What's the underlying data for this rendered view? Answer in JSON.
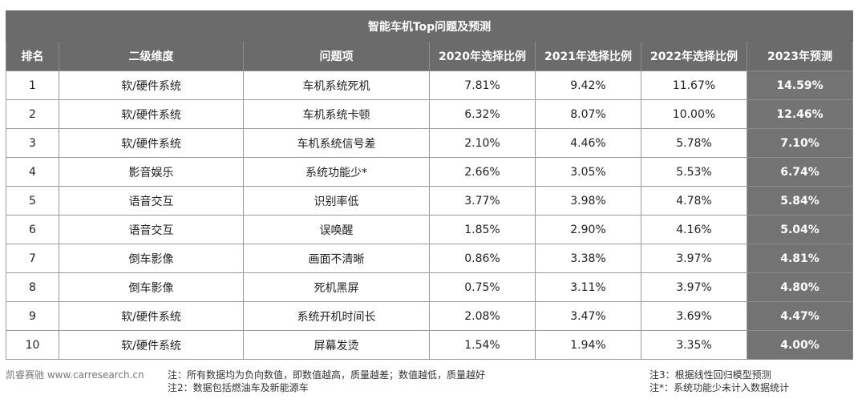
{
  "table": {
    "title": "智能车机Top问题及预测",
    "headers": [
      "排名",
      "二级维度",
      "问题项",
      "2020年选择比例",
      "2021年选择比例",
      "2022年选择比例",
      "2023年预测"
    ],
    "rows": [
      {
        "rank": "1",
        "dimension": "软/硬件系统",
        "issue": "车机系统死机",
        "y2020": "7.81%",
        "y2021": "9.42%",
        "y2022": "11.67%",
        "y2023": "14.59%"
      },
      {
        "rank": "2",
        "dimension": "软/硬件系统",
        "issue": "车机系统卡顿",
        "y2020": "6.32%",
        "y2021": "8.07%",
        "y2022": "10.00%",
        "y2023": "12.46%"
      },
      {
        "rank": "3",
        "dimension": "软/硬件系统",
        "issue": "车机系统信号差",
        "y2020": "2.10%",
        "y2021": "4.46%",
        "y2022": "5.78%",
        "y2023": "7.10%"
      },
      {
        "rank": "4",
        "dimension": "影音娱乐",
        "issue": "系统功能少*",
        "y2020": "2.66%",
        "y2021": "3.05%",
        "y2022": "5.53%",
        "y2023": "6.74%"
      },
      {
        "rank": "5",
        "dimension": "语音交互",
        "issue": "识别率低",
        "y2020": "3.77%",
        "y2021": "3.98%",
        "y2022": "4.78%",
        "y2023": "5.84%"
      },
      {
        "rank": "6",
        "dimension": "语音交互",
        "issue": "误唤醒",
        "y2020": "1.85%",
        "y2021": "2.90%",
        "y2022": "4.16%",
        "y2023": "5.04%"
      },
      {
        "rank": "7",
        "dimension": "倒车影像",
        "issue": "画面不清晰",
        "y2020": "0.86%",
        "y2021": "3.38%",
        "y2022": "3.97%",
        "y2023": "4.81%"
      },
      {
        "rank": "8",
        "dimension": "倒车影像",
        "issue": "死机黑屏",
        "y2020": "0.75%",
        "y2021": "3.11%",
        "y2022": "3.97%",
        "y2023": "4.80%"
      },
      {
        "rank": "9",
        "dimension": "软/硬件系统",
        "issue": "系统开机时间长",
        "y2020": "2.08%",
        "y2021": "3.47%",
        "y2022": "3.69%",
        "y2023": "4.47%"
      },
      {
        "rank": "10",
        "dimension": "软/硬件系统",
        "issue": "屏幕发烫",
        "y2020": "1.54%",
        "y2021": "1.94%",
        "y2022": "3.35%",
        "y2023": "4.00%"
      }
    ]
  },
  "footer": {
    "brand": "凯睿赛驰 www.carresearch.cn",
    "note1": "注：所有数据均为负向数值，即数值越高，质量越差；数值越低，质量越好",
    "note2": "注2：数据包括燃油车及新能源车",
    "note3": "注3：根据线性回归模型预测",
    "note4": "注*：系统功能少未计入数据统计"
  }
}
